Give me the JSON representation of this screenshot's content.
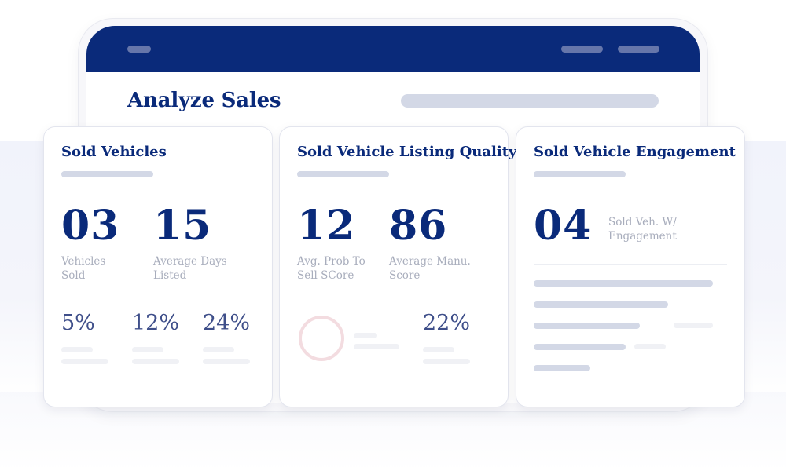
{
  "page": {
    "title": "Analyze Sales"
  },
  "cards": [
    {
      "title": "Sold Vehicles",
      "stats": [
        {
          "value": "03",
          "label_line1": "Vehicles",
          "label_line2": "Sold"
        },
        {
          "value": "15",
          "label_line1": "Average Days",
          "label_line2": "Listed"
        }
      ],
      "percents": [
        "5%",
        "12%",
        "24%"
      ]
    },
    {
      "title": "Sold Vehicle Listing Quality",
      "stats": [
        {
          "value": "12",
          "label_line1": "Avg. Prob To",
          "label_line2": "Sell SCore"
        },
        {
          "value": "86",
          "label_line1": "Average Manu.",
          "label_line2": "Score"
        }
      ],
      "percents": [
        "22%"
      ]
    },
    {
      "title": "Sold Vehicle Engagement",
      "stats": [
        {
          "value": "04",
          "label_line1": "Sold Veh. W/",
          "label_line2": "Engagement"
        }
      ]
    }
  ],
  "colors": {
    "brand_navy": "#0a2a7a",
    "percent_text": "#3f4f8a",
    "placeholder_bar": "#d3d8e6",
    "ring_pink": "#f3dce0"
  },
  "icons": {
    "donut": "donut-chart-icon"
  }
}
